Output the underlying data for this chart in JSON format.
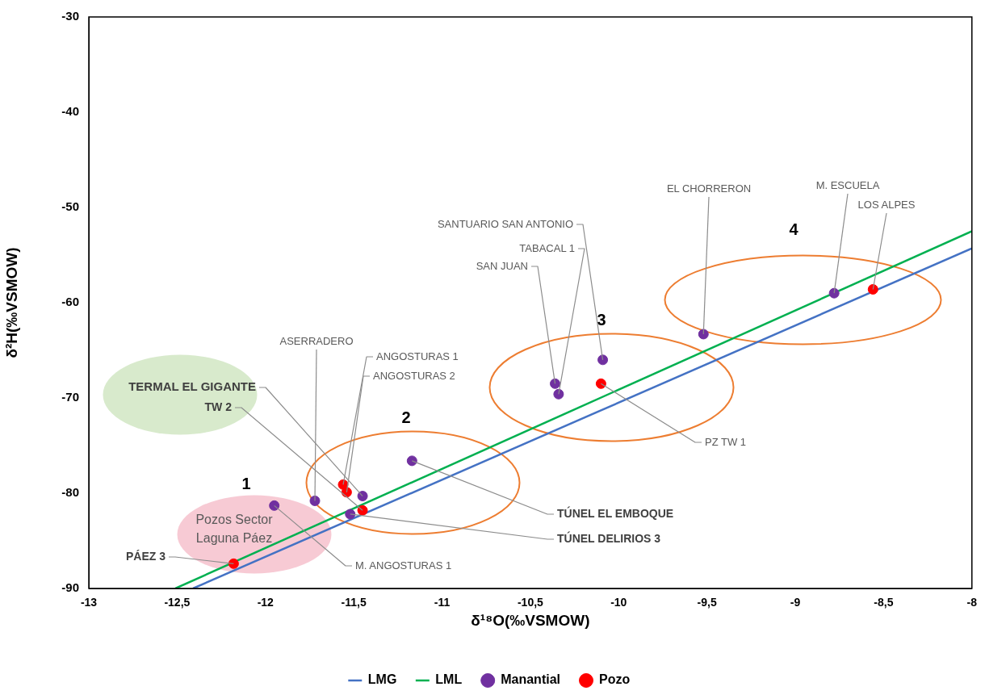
{
  "chart_data": {
    "type": "scatter",
    "xlabel": "δ¹⁸O(‰VSMOW)",
    "ylabel": "δ²H(‰VSMOW)",
    "xlim": [
      -13,
      -8
    ],
    "ylim": [
      -90,
      -30
    ],
    "xticks": [
      -13,
      {
        "value": -12.5,
        "label": "-12,5"
      },
      -12,
      {
        "value": -11.5,
        "label": "-11,5"
      },
      -11,
      {
        "value": -10.5,
        "label": "-10,5"
      },
      -10,
      {
        "value": -9.5,
        "label": "-9,5"
      },
      -9,
      {
        "value": -8.5,
        "label": "-8,5"
      },
      -8
    ],
    "yticks": [
      -90,
      -80,
      -70,
      -60,
      -50,
      -40,
      -30
    ],
    "grid": false,
    "legend": "bottom",
    "marker": "circle",
    "series": [
      {
        "name": "LMG",
        "type": "line",
        "marker": "none",
        "color": "#4472c4",
        "x": [
          -12.41,
          -8
        ],
        "values": [
          -90,
          -54.3
        ]
      },
      {
        "name": "LML",
        "type": "line",
        "marker": "none",
        "color": "#00b050",
        "x": [
          -12.51,
          -8
        ],
        "values": [
          -90,
          -52.5
        ]
      },
      {
        "name": "Manantial",
        "type": "scatter",
        "color": "#7030a0",
        "x": [
          -11.95,
          -11.72,
          -11.45,
          -11.52,
          -11.17,
          -10.36,
          -10.34,
          -10.09,
          -9.52,
          -8.78
        ],
        "values": [
          -81.3,
          -80.8,
          -80.3,
          -82.2,
          -76.6,
          -68.5,
          -69.6,
          -66.0,
          -63.3,
          -59.0
        ]
      },
      {
        "name": "Pozo",
        "type": "scatter",
        "color": "#ff0000",
        "x": [
          -12.18,
          -11.56,
          -11.54,
          -11.45,
          -10.1,
          -8.56
        ],
        "values": [
          -87.4,
          -79.1,
          -79.9,
          -81.8,
          -68.5,
          -58.6
        ]
      }
    ],
    "annotations": [
      "1",
      "2",
      "3",
      "4",
      "Pozos Sector Laguna Páez",
      {
        "text": "TERMAL EL GIGANTE",
        "x": -11.45,
        "y": -80.3
      },
      {
        "text": "TW 2",
        "x": -11.45,
        "y": -81.8
      },
      {
        "text": "ASERRADERO",
        "x": -11.72,
        "y": -80.8
      },
      {
        "text": "ANGOSTURAS 1",
        "x": -11.56,
        "y": -79.1
      },
      {
        "text": "ANGOSTURAS 2",
        "x": -11.54,
        "y": -79.9
      },
      {
        "text": "M. ANGOSTURAS 1",
        "x": -11.95,
        "y": -81.3
      },
      {
        "text": "PÁEZ 3",
        "x": -12.18,
        "y": -87.4
      },
      {
        "text": "TÚNEL EL EMBOQUE",
        "x": -11.17,
        "y": -76.6
      },
      {
        "text": "TÚNEL DELIRIOS 3",
        "x": -11.52,
        "y": -82.2
      },
      {
        "text": "SANTUARIO SAN ANTONIO",
        "x": -10.09,
        "y": -66.0
      },
      {
        "text": "TABACAL 1",
        "x": -10.34,
        "y": -69.6
      },
      {
        "text": "SAN JUAN",
        "x": -10.36,
        "y": -68.5
      },
      {
        "text": "PZ TW 1",
        "x": -10.1,
        "y": -68.5
      },
      {
        "text": "EL CHORRERON",
        "x": -9.52,
        "y": -63.3
      },
      {
        "text": "M. ESCUELA",
        "x": -8.78,
        "y": -59.0
      },
      {
        "text": "LOS ALPES",
        "x": -8.56,
        "y": -58.6
      }
    ]
  }
}
